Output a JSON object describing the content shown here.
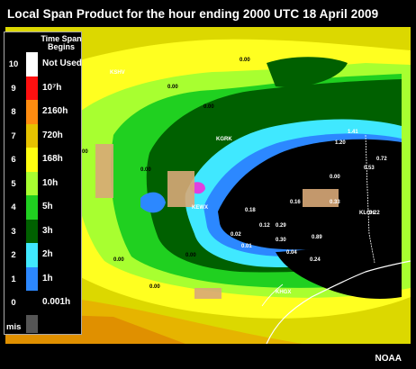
{
  "title": "Local Span Product for the hour ending 2000 UTC 18 April 2009",
  "credit": "NOAA",
  "legend": {
    "header": "Time Span Begins",
    "entries": [
      {
        "num": "10",
        "label": "Not Used",
        "color": "#ffffff"
      },
      {
        "num": "9",
        "label": "10⁷h",
        "color": "#ff1010"
      },
      {
        "num": "8",
        "label": "2160h",
        "color": "#ff8c10"
      },
      {
        "num": "7",
        "label": "720h",
        "color": "#e6c200"
      },
      {
        "num": "6",
        "label": "168h",
        "color": "#ffff10"
      },
      {
        "num": "5",
        "label": "10h",
        "color": "#a8ff30"
      },
      {
        "num": "4",
        "label": "5h",
        "color": "#20d020"
      },
      {
        "num": "3",
        "label": "3h",
        "color": "#006000"
      },
      {
        "num": "2",
        "label": "2h",
        "color": "#40e8ff"
      },
      {
        "num": "1",
        "label": "1h",
        "color": "#2c88ff"
      },
      {
        "num": "0",
        "label": "0.001h",
        "color": "#000000"
      },
      {
        "num": "mis",
        "label": "",
        "color": "#555555"
      }
    ]
  },
  "stations": [
    "KSHV",
    "KGRK",
    "KEWX",
    "KHGX",
    "KLCH"
  ],
  "map_values": [
    "0.00",
    "0.01",
    "0.02",
    "0.12",
    "0.29",
    "0.33",
    "0.89",
    "1.20",
    "1.41",
    "0.72",
    "0.53",
    "0.22",
    "0.16",
    "0.24",
    "0.04",
    "0.30",
    "0.18"
  ]
}
